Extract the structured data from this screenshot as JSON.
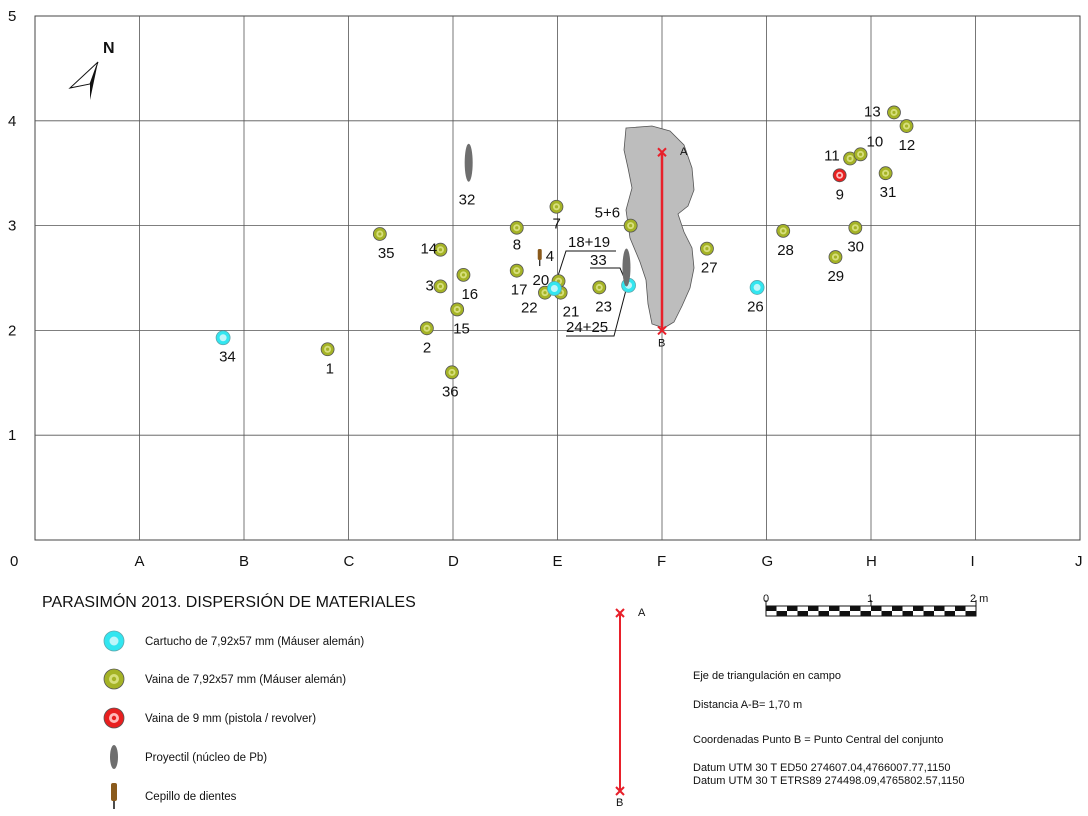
{
  "chart_data": {
    "type": "scatter",
    "title": "PARASIMÓN 2013. DISPERSIÓN DE MATERIALES",
    "x_letters": [
      "0",
      "A",
      "B",
      "C",
      "D",
      "E",
      "F",
      "G",
      "H",
      "I",
      "J"
    ],
    "y_ticks": [
      "1",
      "2",
      "3",
      "4",
      "5"
    ],
    "xlim": [
      0,
      10
    ],
    "ylim": [
      0,
      5
    ],
    "grid": true,
    "points": [
      {
        "label": "34",
        "type": "cartucho",
        "x": 1.8,
        "y": 1.93
      },
      {
        "label": "1",
        "type": "vaina",
        "x": 2.8,
        "y": 1.82
      },
      {
        "label": "35",
        "type": "vaina",
        "x": 3.3,
        "y": 2.92
      },
      {
        "label": "2",
        "type": "vaina",
        "x": 3.75,
        "y": 2.02
      },
      {
        "label": "14",
        "type": "vaina",
        "x": 3.88,
        "y": 2.77
      },
      {
        "label": "3",
        "type": "vaina",
        "x": 3.88,
        "y": 2.42
      },
      {
        "label": "16",
        "type": "vaina",
        "x": 4.1,
        "y": 2.53
      },
      {
        "label": "15",
        "type": "vaina",
        "x": 4.04,
        "y": 2.2
      },
      {
        "label": "36",
        "type": "vaina",
        "x": 3.99,
        "y": 1.6
      },
      {
        "label": "8",
        "type": "vaina",
        "x": 4.61,
        "y": 2.98
      },
      {
        "label": "7",
        "type": "vaina",
        "x": 4.99,
        "y": 3.18
      },
      {
        "label": "17",
        "type": "vaina",
        "x": 4.61,
        "y": 2.57
      },
      {
        "label": "20",
        "type": "vaina",
        "x": 5.01,
        "y": 2.47
      },
      {
        "label": "22",
        "type": "vaina",
        "x": 4.88,
        "y": 2.36
      },
      {
        "label": "21",
        "type": "vaina",
        "x": 5.03,
        "y": 2.36
      },
      {
        "label": "",
        "type": "cartucho",
        "x": 4.97,
        "y": 2.4
      },
      {
        "label": "23",
        "type": "vaina",
        "x": 5.4,
        "y": 2.41
      },
      {
        "label": "",
        "type": "cartucho",
        "x": 5.68,
        "y": 2.43
      },
      {
        "label": "5+6",
        "type": "vaina",
        "x": 5.7,
        "y": 3.0
      },
      {
        "label": "27",
        "type": "vaina",
        "x": 6.43,
        "y": 2.78
      },
      {
        "label": "26",
        "type": "cartucho",
        "x": 6.91,
        "y": 2.41
      },
      {
        "label": "28",
        "type": "vaina",
        "x": 7.16,
        "y": 2.95
      },
      {
        "label": "29",
        "type": "vaina",
        "x": 7.66,
        "y": 2.7
      },
      {
        "label": "30",
        "type": "vaina",
        "x": 7.85,
        "y": 2.98
      },
      {
        "label": "9",
        "type": "vaina9",
        "x": 7.7,
        "y": 3.48
      },
      {
        "label": "11",
        "type": "vaina",
        "x": 7.8,
        "y": 3.64
      },
      {
        "label": "10",
        "type": "vaina",
        "x": 7.9,
        "y": 3.68
      },
      {
        "label": "31",
        "type": "vaina",
        "x": 8.14,
        "y": 3.5
      },
      {
        "label": "13",
        "type": "vaina",
        "x": 8.22,
        "y": 4.08
      },
      {
        "label": "12",
        "type": "vaina",
        "x": 8.34,
        "y": 3.95
      },
      {
        "label": "32",
        "type": "proyectil",
        "x": 4.15,
        "y": 3.6
      },
      {
        "label": "",
        "type": "proyectil",
        "x": 5.66,
        "y": 2.6
      },
      {
        "label": "4",
        "type": "cepillo",
        "x": 4.83,
        "y": 2.7
      }
    ],
    "callout_labels": [
      "18+19",
      "33",
      "24+25"
    ],
    "axis_segment": {
      "a_label": "A",
      "b_label": "B",
      "a": [
        6.0,
        3.7
      ],
      "b": [
        6.0,
        2.0
      ]
    }
  },
  "north_label": "N",
  "legend": {
    "items": [
      {
        "kind": "cartucho",
        "text": "Cartucho de 7,92x57 mm (Máuser alemán)"
      },
      {
        "kind": "vaina",
        "text": "Vaina de 7,92x57 mm (Máuser alemán)"
      },
      {
        "kind": "vaina9",
        "text": "Vaina de 9 mm (pistola / revolver)"
      },
      {
        "kind": "proyectil",
        "text": "Proyectil (núcleo de Pb)"
      },
      {
        "kind": "cepillo",
        "text": "Cepillo de dientes"
      }
    ]
  },
  "scale_bar": {
    "labels": [
      "0",
      "1",
      "2 m"
    ]
  },
  "info": {
    "a_label": "A",
    "b_label": "B",
    "line1": "Eje de triangulación en campo",
    "line2": "Distancia A-B= 1,70 m",
    "line3": "Coordenadas Punto B = Punto Central del conjunto",
    "line4": "Datum UTM 30 T ED50 274607.04,4766007.77,1150",
    "line5": "Datum UTM 30 T ETRS89 274498.09,4765802.57,1150"
  },
  "colors": {
    "cartucho_outer": "#32e6f0",
    "cartucho_inner": "#bff6fa",
    "vaina_outer": "#a5b326",
    "vaina_ring": "#d7df7c",
    "vaina9_outer": "#e81f1f",
    "vaina9_ring": "#ffb9b9",
    "proyectil": "#6e6e6e",
    "cepillo": "#8a5a1c",
    "axis_red": "#e8202a",
    "pool": "#bdbdbd"
  }
}
